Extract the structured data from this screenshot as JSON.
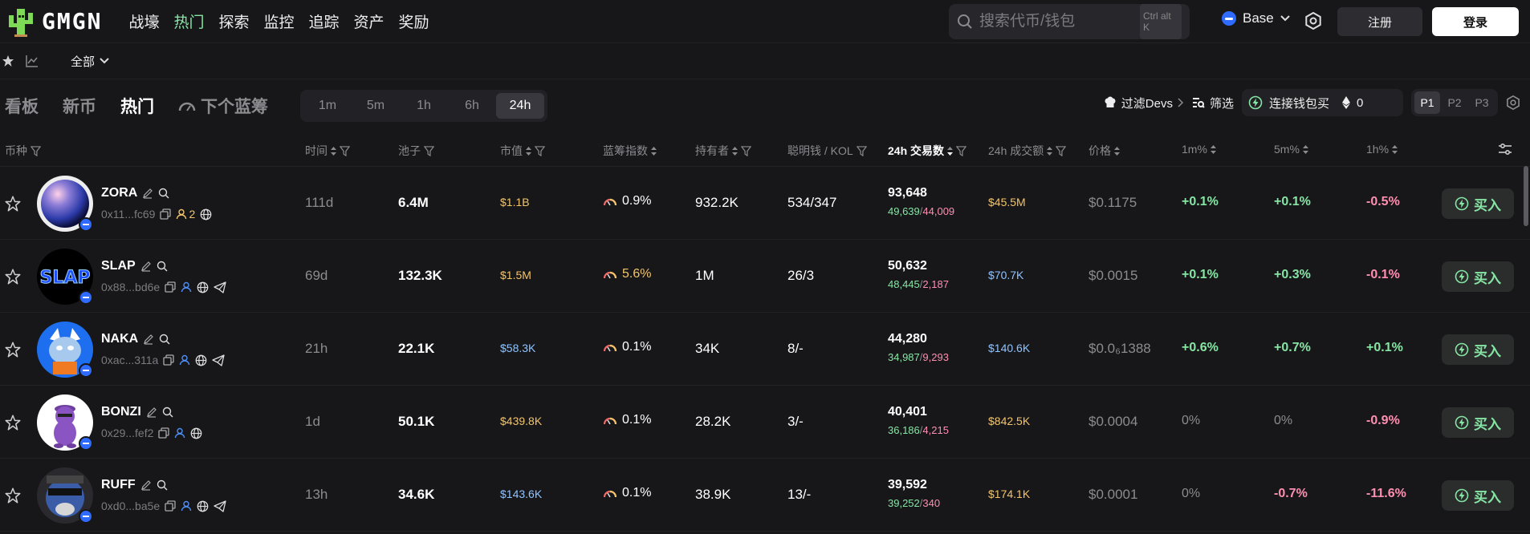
{
  "app": {
    "logo_text": "GMGN"
  },
  "nav": {
    "items": [
      "战壕",
      "热门",
      "探索",
      "监控",
      "追踪",
      "资产",
      "奖励"
    ],
    "active_index": 1
  },
  "search": {
    "placeholder": "搜索代币/钱包",
    "shortcut": "Ctrl alt K"
  },
  "chain": {
    "label": "Base"
  },
  "auth": {
    "register": "注册",
    "login": "登录"
  },
  "subbar": {
    "filter_label": "全部"
  },
  "main_tabs": {
    "items": [
      "看板",
      "新币",
      "热门",
      "下个蓝筹"
    ],
    "active_index": 2
  },
  "timeframes": {
    "items": [
      "1m",
      "5m",
      "1h",
      "6h",
      "24h"
    ],
    "active_index": 4
  },
  "controls": {
    "filter_devs": "过滤Devs",
    "screen": "筛选",
    "connect_buy": "连接钱包买",
    "eth_amount": "0",
    "pages": [
      "P1",
      "P2",
      "P3"
    ],
    "active_page": 0
  },
  "columns": [
    "币种",
    "时间",
    "池子",
    "市值",
    "蓝筹指数",
    "持有者",
    "聪明钱 / KOL",
    "24h 交易数",
    "24h 成交额",
    "价格",
    "1m%",
    "5m%",
    "1h%"
  ],
  "buy_label": "买入",
  "rows": [
    {
      "symbol": "ZORA",
      "address": "0x11...fc69",
      "holders_extra": "2",
      "age": "111d",
      "pool": "6.4M",
      "mcap": "$1.1B",
      "mcap_color": "#f2c46b",
      "bluechip": "0.9%",
      "holders": "932.2K",
      "smart_kol": "534/347",
      "txs": "93,648",
      "buys": "49,639",
      "sells": "44,009",
      "volume": "$45.5M",
      "vol_color": "#f2c46b",
      "price": "$0.1175",
      "m1": "+0.1%",
      "m1_type": "up",
      "m5": "+0.1%",
      "m5_type": "up",
      "h1": "-0.5%",
      "h1_type": "down",
      "icons": [
        "copy-icon",
        "user-icon",
        "globe-icon"
      ]
    },
    {
      "symbol": "SLAP",
      "address": "0x88...bd6e",
      "holders_extra": "",
      "age": "69d",
      "pool": "132.3K",
      "mcap": "$1.5M",
      "mcap_color": "#f2c46b",
      "bluechip": "5.6%",
      "holders": "1M",
      "smart_kol": "26/3",
      "txs": "50,632",
      "buys": "48,445",
      "sells": "2,187",
      "volume": "$70.7K",
      "vol_color": "#8fc4ff",
      "price": "$0.0015",
      "m1": "+0.1%",
      "m1_type": "up",
      "m5": "+0.3%",
      "m5_type": "up",
      "h1": "-0.1%",
      "h1_type": "down",
      "icons": [
        "copy-icon",
        "user-icon",
        "globe-icon",
        "telegram-icon"
      ]
    },
    {
      "symbol": "NAKA",
      "address": "0xac...311a",
      "holders_extra": "",
      "age": "21h",
      "pool": "22.1K",
      "mcap": "$58.3K",
      "mcap_color": "#8fc4ff",
      "bluechip": "0.1%",
      "holders": "34K",
      "smart_kol": "8/-",
      "txs": "44,280",
      "buys": "34,987",
      "sells": "9,293",
      "volume": "$140.6K",
      "vol_color": "#8fc4ff",
      "price": "$0.0₆1388",
      "m1": "+0.6%",
      "m1_type": "up",
      "m5": "+0.7%",
      "m5_type": "up",
      "h1": "+0.1%",
      "h1_type": "up",
      "icons": [
        "copy-icon",
        "user-icon",
        "globe-icon",
        "telegram-icon"
      ]
    },
    {
      "symbol": "BONZI",
      "address": "0x29...fef2",
      "holders_extra": "",
      "age": "1d",
      "pool": "50.1K",
      "mcap": "$439.8K",
      "mcap_color": "#f2c46b",
      "bluechip": "0.1%",
      "holders": "28.2K",
      "smart_kol": "3/-",
      "txs": "40,401",
      "buys": "36,186",
      "sells": "4,215",
      "volume": "$842.5K",
      "vol_color": "#f2c46b",
      "price": "$0.0004",
      "m1": "0%",
      "m1_type": "flat",
      "m5": "0%",
      "m5_type": "flat",
      "h1": "-0.9%",
      "h1_type": "down",
      "icons": [
        "copy-icon",
        "user-icon",
        "globe-icon"
      ]
    },
    {
      "symbol": "RUFF",
      "address": "0xd0...ba5e",
      "holders_extra": "",
      "age": "13h",
      "pool": "34.6K",
      "mcap": "$143.6K",
      "mcap_color": "#8fc4ff",
      "bluechip": "0.1%",
      "holders": "38.9K",
      "smart_kol": "13/-",
      "txs": "39,592",
      "buys": "39,252",
      "sells": "340",
      "volume": "$174.1K",
      "vol_color": "#f2c46b",
      "price": "$0.0001",
      "m1": "0%",
      "m1_type": "flat",
      "m5": "-0.7%",
      "m5_type": "down",
      "h1": "-11.6%",
      "h1_type": "down",
      "icons": [
        "copy-icon",
        "user-icon",
        "globe-icon",
        "telegram-icon"
      ]
    }
  ]
}
